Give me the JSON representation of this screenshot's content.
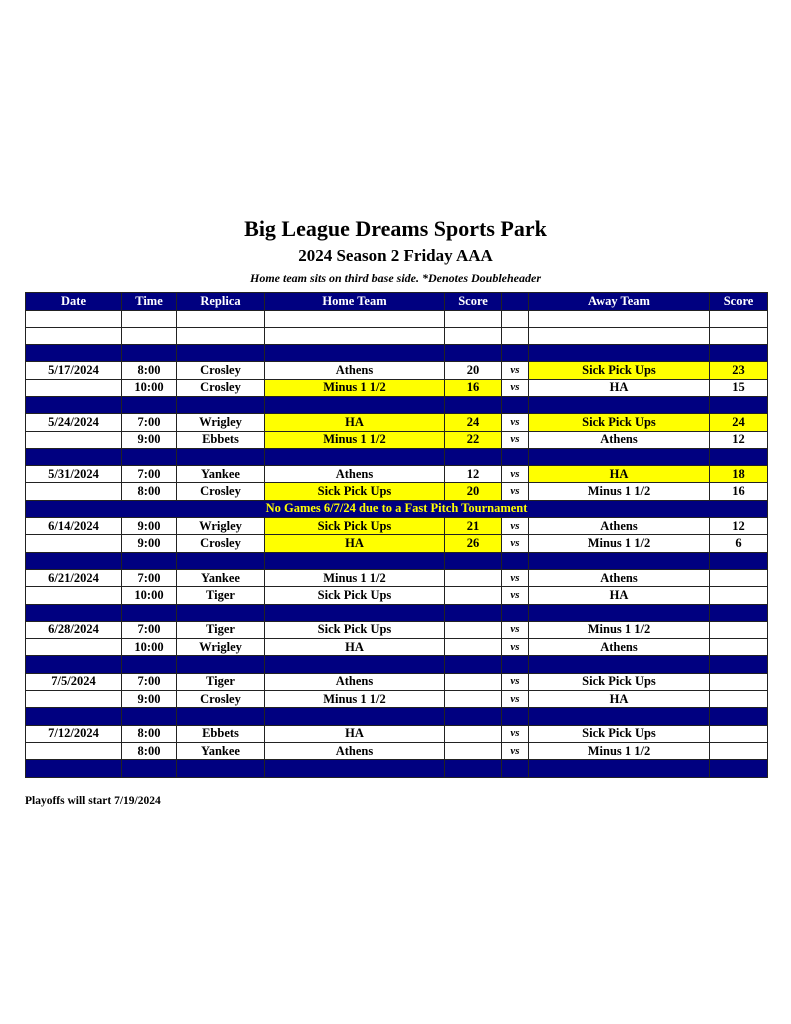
{
  "header": {
    "title": "Big League Dreams Sports Park",
    "subtitle": "2024 Season 2 Friday AAA",
    "note": "Home team sits on third base side.  *Denotes Doubleheader"
  },
  "columns": [
    "Date",
    "Time",
    "Replica",
    "Home Team",
    "Score",
    "",
    "Away Team",
    "Score"
  ],
  "vs_label": "vs",
  "colors": {
    "header_bg": "#000080",
    "highlight": "#ffff00",
    "notice_text": "#ffff00"
  },
  "rows": [
    {
      "type": "blank"
    },
    {
      "type": "blank"
    },
    {
      "type": "blue"
    },
    {
      "type": "game",
      "date": "5/17/2024",
      "time": "8:00",
      "replica": "Crosley",
      "home": "Athens",
      "home_score": "20",
      "away": "Sick Pick Ups",
      "away_score": "23",
      "home_hl": false,
      "away_hl": true
    },
    {
      "type": "game",
      "date": "",
      "time": "10:00",
      "replica": "Crosley",
      "home": "Minus 1 1/2",
      "home_score": "16",
      "away": "HA",
      "away_score": "15",
      "home_hl": true,
      "away_hl": false
    },
    {
      "type": "blue"
    },
    {
      "type": "game",
      "date": "5/24/2024",
      "time": "7:00",
      "replica": "Wrigley",
      "home": "HA",
      "home_score": "24",
      "away": "Sick Pick Ups",
      "away_score": "24",
      "home_hl": true,
      "away_hl": true
    },
    {
      "type": "game",
      "date": "",
      "time": "9:00",
      "replica": "Ebbets",
      "home": "Minus 1 1/2",
      "home_score": "22",
      "away": "Athens",
      "away_score": "12",
      "home_hl": true,
      "away_hl": false
    },
    {
      "type": "blue"
    },
    {
      "type": "game",
      "date": "5/31/2024",
      "time": "7:00",
      "replica": "Yankee",
      "home": "Athens",
      "home_score": "12",
      "away": "HA",
      "away_score": "18",
      "home_hl": false,
      "away_hl": true
    },
    {
      "type": "game",
      "date": "",
      "time": "8:00",
      "replica": "Crosley",
      "home": "Sick Pick Ups",
      "home_score": "20",
      "away": "Minus 1 1/2",
      "away_score": "16",
      "home_hl": true,
      "away_hl": false
    },
    {
      "type": "notice",
      "text": "No Games 6/7/24 due to a Fast Pitch Tournament"
    },
    {
      "type": "game",
      "date": "6/14/2024",
      "time": "9:00",
      "replica": "Wrigley",
      "home": "Sick Pick Ups",
      "home_score": "21",
      "away": "Athens",
      "away_score": "12",
      "home_hl": true,
      "away_hl": false
    },
    {
      "type": "game",
      "date": "",
      "time": "9:00",
      "replica": "Crosley",
      "home": "HA",
      "home_score": "26",
      "away": "Minus 1 1/2",
      "away_score": "6",
      "home_hl": true,
      "away_hl": false
    },
    {
      "type": "blue"
    },
    {
      "type": "game",
      "date": "6/21/2024",
      "time": "7:00",
      "replica": "Yankee",
      "home": "Minus 1 1/2",
      "home_score": "",
      "away": "Athens",
      "away_score": "",
      "home_hl": false,
      "away_hl": false
    },
    {
      "type": "game",
      "date": "",
      "time": "10:00",
      "replica": "Tiger",
      "home": "Sick Pick Ups",
      "home_score": "",
      "away": "HA",
      "away_score": "",
      "home_hl": false,
      "away_hl": false
    },
    {
      "type": "blue"
    },
    {
      "type": "game",
      "date": "6/28/2024",
      "time": "7:00",
      "replica": "Tiger",
      "home": "Sick Pick Ups",
      "home_score": "",
      "away": "Minus 1 1/2",
      "away_score": "",
      "home_hl": false,
      "away_hl": false
    },
    {
      "type": "game",
      "date": "",
      "time": "10:00",
      "replica": "Wrigley",
      "home": "HA",
      "home_score": "",
      "away": "Athens",
      "away_score": "",
      "home_hl": false,
      "away_hl": false
    },
    {
      "type": "blue"
    },
    {
      "type": "game",
      "date": "7/5/2024",
      "time": "7:00",
      "replica": "Tiger",
      "home": "Athens",
      "home_score": "",
      "away": "Sick Pick Ups",
      "away_score": "",
      "home_hl": false,
      "away_hl": false
    },
    {
      "type": "game",
      "date": "",
      "time": "9:00",
      "replica": "Crosley",
      "home": "Minus 1 1/2",
      "home_score": "",
      "away": "HA",
      "away_score": "",
      "home_hl": false,
      "away_hl": false
    },
    {
      "type": "blue"
    },
    {
      "type": "game",
      "date": "7/12/2024",
      "time": "8:00",
      "replica": "Ebbets",
      "home": "HA",
      "home_score": "",
      "away": "Sick Pick Ups",
      "away_score": "",
      "home_hl": false,
      "away_hl": false
    },
    {
      "type": "game",
      "date": "",
      "time": "8:00",
      "replica": "Yankee",
      "home": "Athens",
      "home_score": "",
      "away": "Minus 1 1/2",
      "away_score": "",
      "home_hl": false,
      "away_hl": false
    },
    {
      "type": "blue"
    }
  ],
  "footer": "Playoffs will start 7/19/2024"
}
